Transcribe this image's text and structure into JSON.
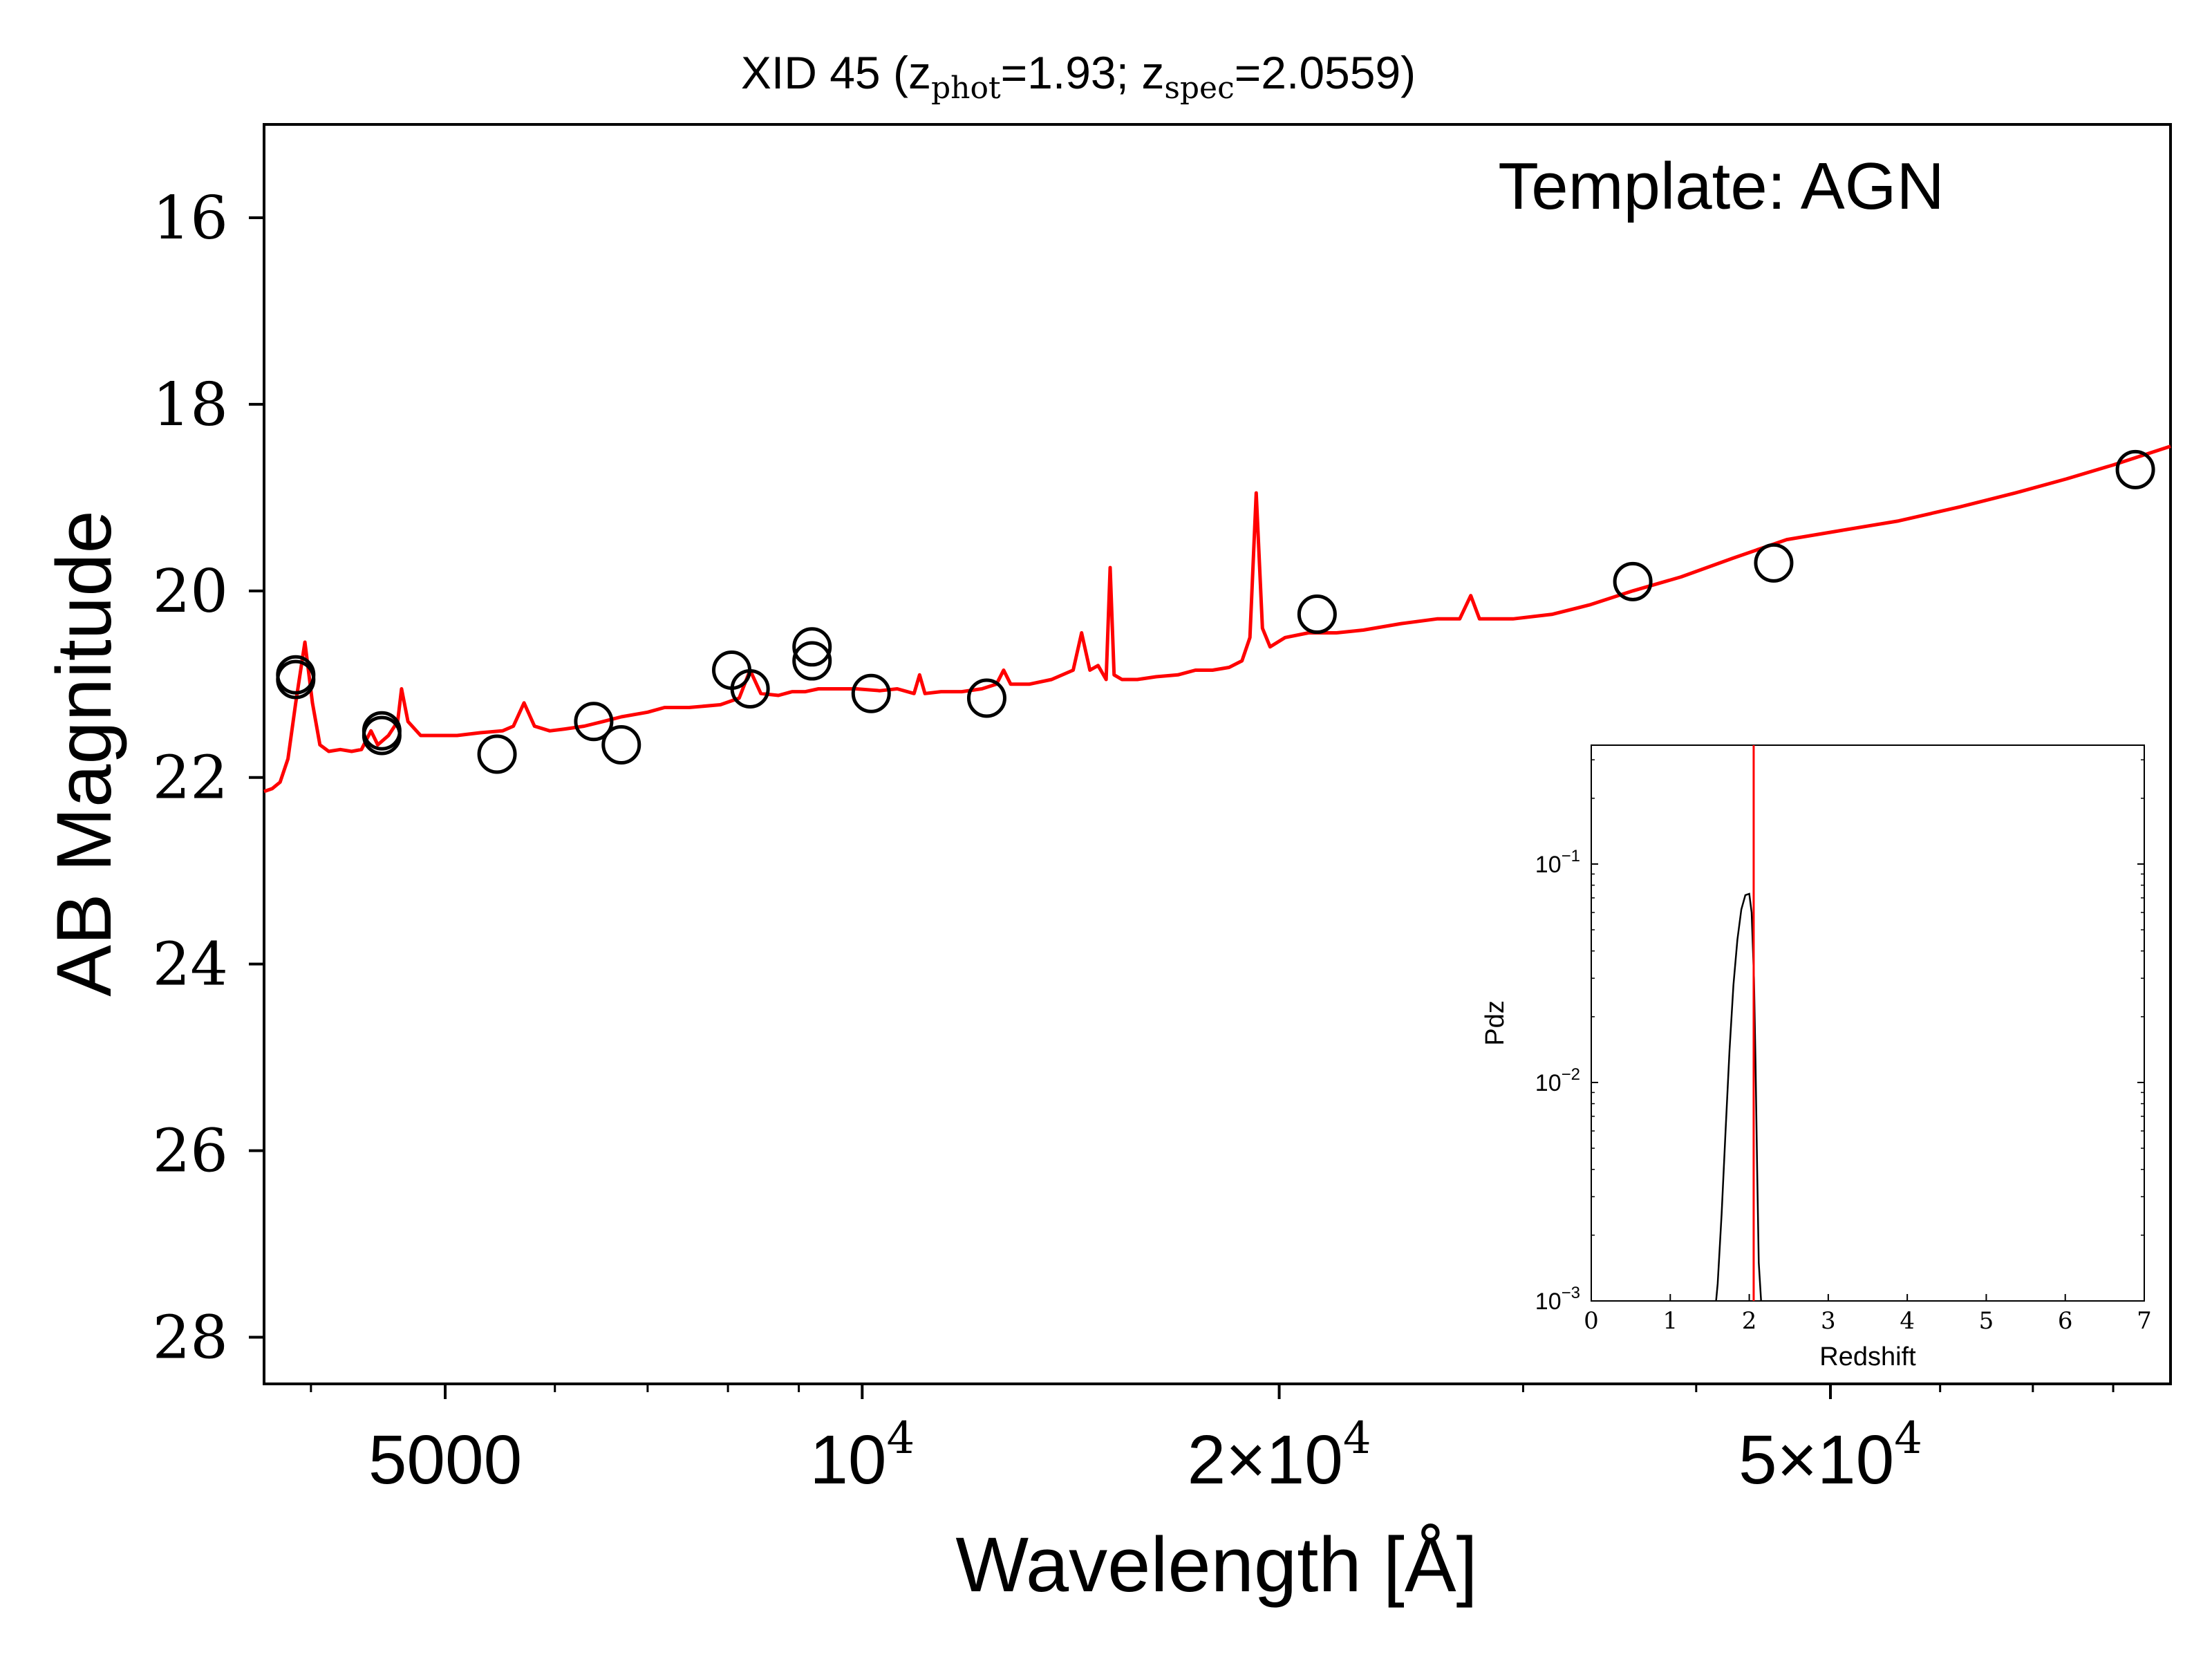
{
  "chart_data": [
    {
      "type": "scatter",
      "title": {
        "prefix": "XID 45 (z",
        "sub1": "phot",
        "mid": "=1.93; z",
        "sub2": "spec",
        "suffix": "=2.0559)"
      },
      "template_label": "Template: AGN",
      "xlabel": "Wavelength [Å]",
      "ylabel": "AB Magnitude",
      "xscale": "log",
      "xlim": [
        3700,
        88000
      ],
      "ylim": [
        28.5,
        15.0
      ],
      "y_inverted": true,
      "x_ticks": [
        {
          "value": 5000,
          "label": "5000"
        },
        {
          "value": 10000,
          "base": "10",
          "exp": "4"
        },
        {
          "value": 20000,
          "base": "2×10",
          "exp": "4"
        },
        {
          "value": 50000,
          "base": "5×10",
          "exp": "4"
        }
      ],
      "y_ticks": [
        16,
        18,
        20,
        22,
        24,
        26,
        28
      ],
      "observed_color": "#000000",
      "model_color": "#ff0000",
      "observed_photometry": [
        {
          "x": 3900,
          "y": 20.9
        },
        {
          "x": 3900,
          "y": 20.95
        },
        {
          "x": 4500,
          "y": 21.5
        },
        {
          "x": 4500,
          "y": 21.55
        },
        {
          "x": 5450,
          "y": 21.75
        },
        {
          "x": 6400,
          "y": 21.4
        },
        {
          "x": 6700,
          "y": 21.65
        },
        {
          "x": 8050,
          "y": 20.85
        },
        {
          "x": 8300,
          "y": 21.05
        },
        {
          "x": 9200,
          "y": 20.6
        },
        {
          "x": 9200,
          "y": 20.75
        },
        {
          "x": 10150,
          "y": 21.1
        },
        {
          "x": 12300,
          "y": 21.15
        },
        {
          "x": 21300,
          "y": 20.25
        },
        {
          "x": 36000,
          "y": 19.9
        },
        {
          "x": 45500,
          "y": 19.7
        },
        {
          "x": 83000,
          "y": 18.7
        }
      ],
      "model_sed": [
        [
          3700,
          22.15
        ],
        [
          3750,
          22.12
        ],
        [
          3800,
          22.05
        ],
        [
          3850,
          21.8
        ],
        [
          3900,
          21.2
        ],
        [
          3960,
          20.55
        ],
        [
          4010,
          21.2
        ],
        [
          4060,
          21.65
        ],
        [
          4120,
          21.72
        ],
        [
          4200,
          21.7
        ],
        [
          4280,
          21.72
        ],
        [
          4350,
          21.7
        ],
        [
          4420,
          21.5
        ],
        [
          4470,
          21.65
        ],
        [
          4550,
          21.55
        ],
        [
          4620,
          21.4
        ],
        [
          4650,
          21.05
        ],
        [
          4700,
          21.4
        ],
        [
          4800,
          21.55
        ],
        [
          4950,
          21.55
        ],
        [
          5100,
          21.55
        ],
        [
          5300,
          21.52
        ],
        [
          5500,
          21.5
        ],
        [
          5600,
          21.45
        ],
        [
          5700,
          21.2
        ],
        [
          5800,
          21.45
        ],
        [
          5950,
          21.5
        ],
        [
          6100,
          21.48
        ],
        [
          6300,
          21.45
        ],
        [
          6500,
          21.4
        ],
        [
          6700,
          21.35
        ],
        [
          7000,
          21.3
        ],
        [
          7200,
          21.25
        ],
        [
          7500,
          21.25
        ],
        [
          7900,
          21.22
        ],
        [
          8150,
          21.15
        ],
        [
          8300,
          20.85
        ],
        [
          8450,
          21.1
        ],
        [
          8700,
          21.12
        ],
        [
          8900,
          21.08
        ],
        [
          9100,
          21.08
        ],
        [
          9300,
          21.05
        ],
        [
          9600,
          21.05
        ],
        [
          9900,
          21.05
        ],
        [
          10300,
          21.07
        ],
        [
          10600,
          21.05
        ],
        [
          10900,
          21.1
        ],
        [
          11000,
          20.9
        ],
        [
          11100,
          21.1
        ],
        [
          11400,
          21.08
        ],
        [
          11800,
          21.08
        ],
        [
          12200,
          21.05
        ],
        [
          12500,
          21.0
        ],
        [
          12650,
          20.85
        ],
        [
          12800,
          21.0
        ],
        [
          13200,
          21.0
        ],
        [
          13700,
          20.95
        ],
        [
          14200,
          20.85
        ],
        [
          14400,
          20.45
        ],
        [
          14600,
          20.85
        ],
        [
          14800,
          20.8
        ],
        [
          15000,
          20.95
        ],
        [
          15100,
          19.75
        ],
        [
          15200,
          20.9
        ],
        [
          15400,
          20.95
        ],
        [
          15800,
          20.95
        ],
        [
          16300,
          20.92
        ],
        [
          16900,
          20.9
        ],
        [
          17400,
          20.85
        ],
        [
          17900,
          20.85
        ],
        [
          18400,
          20.82
        ],
        [
          18800,
          20.75
        ],
        [
          19050,
          20.5
        ],
        [
          19250,
          18.95
        ],
        [
          19450,
          20.4
        ],
        [
          19700,
          20.6
        ],
        [
          20200,
          20.5
        ],
        [
          21000,
          20.45
        ],
        [
          22000,
          20.45
        ],
        [
          23000,
          20.42
        ],
        [
          24500,
          20.35
        ],
        [
          26000,
          20.3
        ],
        [
          27000,
          20.3
        ],
        [
          27500,
          20.05
        ],
        [
          27900,
          20.3
        ],
        [
          29500,
          20.3
        ],
        [
          31500,
          20.25
        ],
        [
          33500,
          20.15
        ],
        [
          36000,
          20.0
        ],
        [
          39000,
          19.85
        ],
        [
          42500,
          19.65
        ],
        [
          46500,
          19.45
        ],
        [
          51000,
          19.35
        ],
        [
          56000,
          19.25
        ],
        [
          62000,
          19.1
        ],
        [
          68000,
          18.95
        ],
        [
          74000,
          18.8
        ],
        [
          80000,
          18.65
        ],
        [
          88000,
          18.45
        ]
      ]
    },
    {
      "type": "line",
      "xlabel": "Redshift",
      "ylabel": "Pdz",
      "yscale": "log",
      "xlim": [
        0,
        7
      ],
      "ylim": [
        0.001,
        0.35
      ],
      "x_ticks": [
        0,
        1,
        2,
        3,
        4,
        5,
        6,
        7
      ],
      "y_ticks": [
        {
          "value": 0.1,
          "base": "10",
          "exp": "−1"
        },
        {
          "value": 0.01,
          "base": "10",
          "exp": "−2"
        },
        {
          "value": 0.001,
          "base": "10",
          "exp": "−3"
        }
      ],
      "spec_z": 2.0559,
      "spec_z_color": "#ff0000",
      "pdz_color": "#000000",
      "series": [
        {
          "x": [
            1.58,
            1.6,
            1.65,
            1.7,
            1.75,
            1.8,
            1.85,
            1.9,
            1.95,
            2.0,
            2.03,
            2.06,
            2.08,
            2.1,
            2.12,
            2.15
          ],
          "values": [
            0.001,
            0.0012,
            0.0025,
            0.006,
            0.014,
            0.028,
            0.045,
            0.062,
            0.072,
            0.073,
            0.06,
            0.03,
            0.012,
            0.004,
            0.0015,
            0.001
          ]
        }
      ]
    }
  ]
}
